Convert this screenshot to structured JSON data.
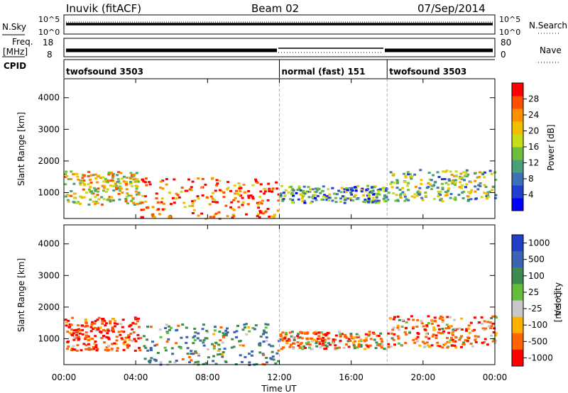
{
  "header": {
    "station": "Inuvik (fitACF)",
    "beam": "Beam 02",
    "date": "07/Sep/2014"
  },
  "nsky": {
    "left_label": "N.Sky",
    "right_label": "N.Search",
    "left_ticks": [
      "10^5",
      "10^0"
    ],
    "right_ticks": [
      "10^5",
      "10^0"
    ]
  },
  "freq": {
    "left_label_line1": "Freq.",
    "left_label_line2": "[MHz]",
    "right_label": "Nave",
    "left_ticks": [
      "18",
      "8"
    ],
    "right_ticks": [
      "80",
      "0"
    ]
  },
  "cpid": {
    "label": "CPID",
    "segments": [
      {
        "name": "twofsound 3503",
        "start_h": 0,
        "end_h": 12
      },
      {
        "name": "normal (fast) 151",
        "start_h": 12,
        "end_h": 18
      },
      {
        "name": "twofsound 3503",
        "start_h": 18,
        "end_h": 24
      }
    ]
  },
  "chart_data": [
    {
      "type": "heatmap",
      "quantity": "Power",
      "ylabel": "Slant Range [km]",
      "yticks": [
        "1000",
        "2000",
        "3000",
        "4000"
      ],
      "ylim": [
        180,
        4600
      ],
      "xlim": [
        0,
        24
      ],
      "colorbar": {
        "label": "Power [dB]",
        "ticks": [
          "4",
          "8",
          "12",
          "16",
          "20",
          "24",
          "28"
        ],
        "colors": [
          "#0000ff",
          "#2040d0",
          "#3c70b8",
          "#48a078",
          "#6cbe3c",
          "#c8dc18",
          "#f0c000",
          "#ff9000",
          "#ff5000",
          "#ff0000"
        ]
      },
      "echo_regions": [
        {
          "t0": 0.0,
          "t1": 4.2,
          "r0": 650,
          "r1": 1700,
          "level": 0.6
        },
        {
          "t0": 4.2,
          "t1": 12.0,
          "r0": 200,
          "r1": 1500,
          "level": 0.85
        },
        {
          "t0": 12.0,
          "t1": 18.0,
          "r0": 700,
          "r1": 1250,
          "level": 0.35
        },
        {
          "t0": 18.0,
          "t1": 24.0,
          "r0": 750,
          "r1": 1750,
          "level": 0.45
        }
      ]
    },
    {
      "type": "heatmap",
      "quantity": "Velocity",
      "ylabel": "Slant Range [km]",
      "yticks": [
        "1000",
        "2000",
        "3000",
        "4000"
      ],
      "ylim": [
        180,
        4600
      ],
      "xlim": [
        0,
        24
      ],
      "colorbar": {
        "label_main": "Velocity",
        "label_unit": "[m s⁻¹]",
        "ticks": [
          "1000",
          "500",
          "100",
          "25",
          "-25",
          "-100",
          "-500",
          "-1000"
        ],
        "colors": [
          "#2040c8",
          "#3c64b4",
          "#3c8c50",
          "#64be3c",
          "#c8c8c8",
          "#ffb000",
          "#ff6400",
          "#ff0000"
        ]
      },
      "echo_regions": [
        {
          "t0": 0.0,
          "t1": 4.2,
          "r0": 650,
          "r1": 1700,
          "velocity": -300
        },
        {
          "t0": 4.2,
          "t1": 12.0,
          "r0": 200,
          "r1": 1500,
          "velocity": 200
        },
        {
          "t0": 12.0,
          "t1": 18.0,
          "r0": 700,
          "r1": 1250,
          "velocity": -150
        },
        {
          "t0": 18.0,
          "t1": 24.0,
          "r0": 750,
          "r1": 1750,
          "velocity": -200
        }
      ]
    }
  ],
  "xaxis": {
    "ticks": [
      "00:00",
      "04:00",
      "08:00",
      "12:00",
      "16:00",
      "20:00",
      "00:00"
    ],
    "label": "Time UT"
  },
  "colors": {
    "axis": "#000000",
    "dashed_divider": "#b0b0b0"
  }
}
